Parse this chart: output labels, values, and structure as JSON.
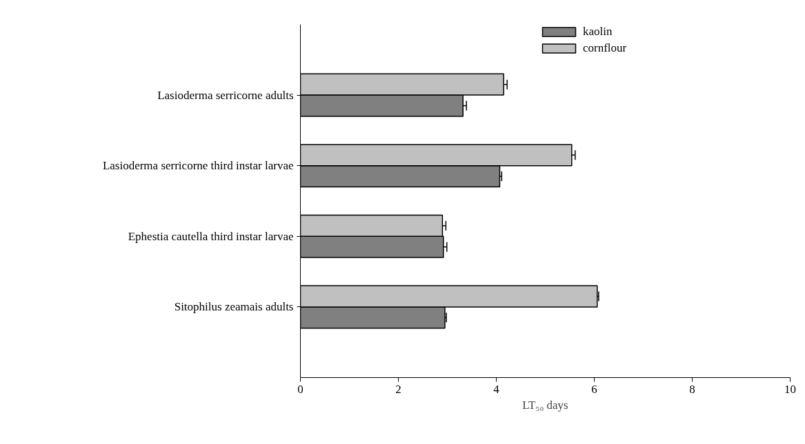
{
  "chart_data": {
    "type": "bar",
    "orientation": "horizontal",
    "categories": [
      "Lasioderma serricorne adults",
      "Lasioderma serricorne third instar larvae",
      "Ephestia cautella third instar larvae",
      "Sitophilus zeamais adults"
    ],
    "series": [
      {
        "name": "kaolin",
        "color": "#808080",
        "values": [
          3.32,
          4.07,
          2.92,
          2.95
        ],
        "errors": [
          0.07,
          0.04,
          0.07,
          0.03
        ]
      },
      {
        "name": "cornflour",
        "color": "#c0c0c0",
        "values": [
          4.15,
          5.54,
          2.9,
          6.06
        ],
        "errors": [
          0.07,
          0.07,
          0.07,
          0.03
        ]
      }
    ],
    "xlabel": "LT₅₀ days",
    "xlim": [
      0,
      10
    ],
    "xticks": [
      0,
      2,
      4,
      6,
      8,
      10
    ],
    "legend": "top right",
    "grid": false
  }
}
